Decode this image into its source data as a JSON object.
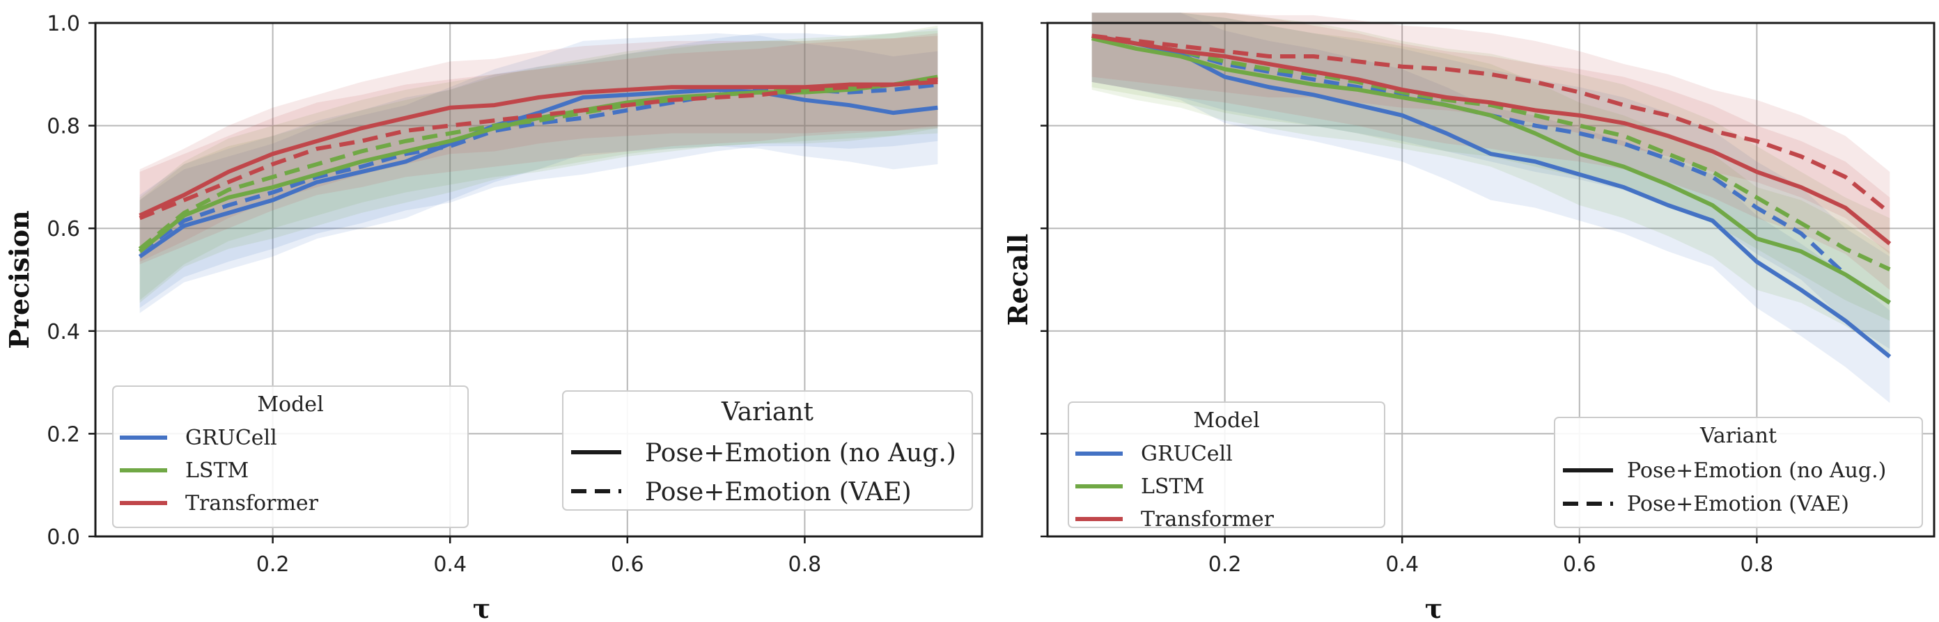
{
  "colors": {
    "GRUCell": "#4472c4",
    "LSTM": "#70a845",
    "Transformer": "#c0464a"
  },
  "chart_data": [
    {
      "id": "precision",
      "type": "line",
      "ylabel": "Precision",
      "xlabel": "τ",
      "xlim": [
        0.0,
        1.0
      ],
      "ylim": [
        0.0,
        1.0
      ],
      "xticks": [
        0.2,
        0.4,
        0.6,
        0.8
      ],
      "xtick_labels": [
        "0.2",
        "0.4",
        "0.6",
        "0.8"
      ],
      "yticks": [
        0.0,
        0.2,
        0.4,
        0.6,
        0.8,
        1.0
      ],
      "ytick_labels": [
        "0.0",
        "0.2",
        "0.4",
        "0.6",
        "0.8",
        "1.0"
      ],
      "grid": true,
      "x": [
        0.05,
        0.1,
        0.15,
        0.2,
        0.25,
        0.3,
        0.35,
        0.4,
        0.45,
        0.5,
        0.55,
        0.6,
        0.65,
        0.7,
        0.75,
        0.8,
        0.85,
        0.9,
        0.95
      ],
      "series": [
        {
          "model": "GRUCell",
          "variant": "Pose+Emotion (no Aug.)",
          "values": [
            0.545,
            0.605,
            0.63,
            0.655,
            0.69,
            0.71,
            0.73,
            0.765,
            0.8,
            0.825,
            0.855,
            0.86,
            0.865,
            0.87,
            0.865,
            0.85,
            0.84,
            0.825,
            0.835
          ],
          "band": 0.11
        },
        {
          "model": "GRUCell",
          "variant": "Pose+Emotion (VAE)",
          "values": [
            0.555,
            0.615,
            0.645,
            0.67,
            0.7,
            0.72,
            0.745,
            0.76,
            0.79,
            0.805,
            0.815,
            0.83,
            0.845,
            0.86,
            0.87,
            0.87,
            0.865,
            0.87,
            0.88
          ],
          "band": 0.11
        },
        {
          "model": "LSTM",
          "variant": "Pose+Emotion (no Aug.)",
          "values": [
            0.555,
            0.625,
            0.66,
            0.68,
            0.705,
            0.73,
            0.75,
            0.77,
            0.795,
            0.815,
            0.83,
            0.845,
            0.855,
            0.86,
            0.865,
            0.865,
            0.87,
            0.88,
            0.895
          ],
          "band": 0.1
        },
        {
          "model": "LSTM",
          "variant": "Pose+Emotion (VAE)",
          "values": [
            0.56,
            0.63,
            0.675,
            0.7,
            0.725,
            0.75,
            0.77,
            0.785,
            0.8,
            0.81,
            0.825,
            0.84,
            0.85,
            0.86,
            0.865,
            0.87,
            0.875,
            0.88,
            0.885
          ],
          "band": 0.1
        },
        {
          "model": "Transformer",
          "variant": "Pose+Emotion (no Aug.)",
          "values": [
            0.625,
            0.665,
            0.71,
            0.745,
            0.77,
            0.795,
            0.815,
            0.835,
            0.84,
            0.855,
            0.865,
            0.87,
            0.875,
            0.875,
            0.875,
            0.875,
            0.88,
            0.88,
            0.885
          ],
          "band": 0.09
        },
        {
          "model": "Transformer",
          "variant": "Pose+Emotion (VAE)",
          "values": [
            0.62,
            0.655,
            0.69,
            0.725,
            0.755,
            0.77,
            0.79,
            0.8,
            0.81,
            0.82,
            0.83,
            0.84,
            0.85,
            0.855,
            0.86,
            0.87,
            0.875,
            0.88,
            0.89
          ],
          "band": 0.09
        }
      ],
      "legend_model": {
        "title": "Model",
        "entries": [
          "GRUCell",
          "LSTM",
          "Transformer"
        ],
        "placement": "lower-left"
      },
      "legend_variant": {
        "title": "Variant",
        "entries": [
          "Pose+Emotion (no Aug.)",
          "Pose+Emotion (VAE)"
        ],
        "placement": "lower-right"
      }
    },
    {
      "id": "recall",
      "type": "line",
      "ylabel": "Recall",
      "xlabel": "τ",
      "xlim": [
        0.0,
        1.0
      ],
      "ylim": [
        0.0,
        1.0
      ],
      "xticks": [
        0.2,
        0.4,
        0.6,
        0.8
      ],
      "xtick_labels": [
        "0.2",
        "0.4",
        "0.6",
        "0.8"
      ],
      "yticks": [
        0.0,
        0.2,
        0.4,
        0.6,
        0.8,
        1.0
      ],
      "ytick_labels": [
        "",
        "",
        "",
        "",
        "",
        ""
      ],
      "grid": true,
      "x": [
        0.05,
        0.1,
        0.15,
        0.2,
        0.25,
        0.3,
        0.35,
        0.4,
        0.45,
        0.5,
        0.55,
        0.6,
        0.65,
        0.7,
        0.75,
        0.8,
        0.85,
        0.9,
        0.95
      ],
      "series": [
        {
          "model": "GRUCell",
          "variant": "Pose+Emotion (no Aug.)",
          "values": [
            0.975,
            0.96,
            0.94,
            0.895,
            0.875,
            0.86,
            0.84,
            0.82,
            0.785,
            0.745,
            0.73,
            0.705,
            0.68,
            0.645,
            0.615,
            0.535,
            0.48,
            0.42,
            0.35
          ],
          "band": 0.09
        },
        {
          "model": "GRUCell",
          "variant": "Pose+Emotion (VAE)",
          "values": [
            0.975,
            0.96,
            0.945,
            0.92,
            0.905,
            0.89,
            0.875,
            0.86,
            0.84,
            0.82,
            0.8,
            0.785,
            0.765,
            0.735,
            0.7,
            0.64,
            0.59,
            0.51,
            0.455
          ],
          "band": 0.09
        },
        {
          "model": "LSTM",
          "variant": "Pose+Emotion (no Aug.)",
          "values": [
            0.97,
            0.95,
            0.935,
            0.91,
            0.895,
            0.88,
            0.87,
            0.855,
            0.84,
            0.82,
            0.785,
            0.745,
            0.72,
            0.685,
            0.645,
            0.58,
            0.555,
            0.51,
            0.455
          ],
          "band": 0.1
        },
        {
          "model": "LSTM",
          "variant": "Pose+Emotion (VAE)",
          "values": [
            0.975,
            0.96,
            0.945,
            0.925,
            0.91,
            0.9,
            0.885,
            0.865,
            0.85,
            0.84,
            0.82,
            0.8,
            0.78,
            0.745,
            0.71,
            0.66,
            0.61,
            0.56,
            0.52
          ],
          "band": 0.1
        },
        {
          "model": "Transformer",
          "variant": "Pose+Emotion (no Aug.)",
          "values": [
            0.975,
            0.96,
            0.945,
            0.935,
            0.92,
            0.905,
            0.89,
            0.87,
            0.855,
            0.845,
            0.83,
            0.82,
            0.805,
            0.78,
            0.75,
            0.71,
            0.68,
            0.64,
            0.57
          ],
          "band": 0.09
        },
        {
          "model": "Transformer",
          "variant": "Pose+Emotion (VAE)",
          "values": [
            0.975,
            0.965,
            0.955,
            0.945,
            0.935,
            0.935,
            0.925,
            0.915,
            0.91,
            0.9,
            0.885,
            0.865,
            0.84,
            0.82,
            0.79,
            0.77,
            0.74,
            0.7,
            0.63
          ],
          "band": 0.08
        }
      ],
      "legend_model": {
        "title": "Model",
        "entries": [
          "GRUCell",
          "LSTM",
          "Transformer"
        ],
        "placement": "lower-left"
      },
      "legend_variant": {
        "title": "Variant",
        "entries": [
          "Pose+Emotion (no Aug.)",
          "Pose+Emotion (VAE)"
        ],
        "placement": "lower-right"
      }
    }
  ]
}
